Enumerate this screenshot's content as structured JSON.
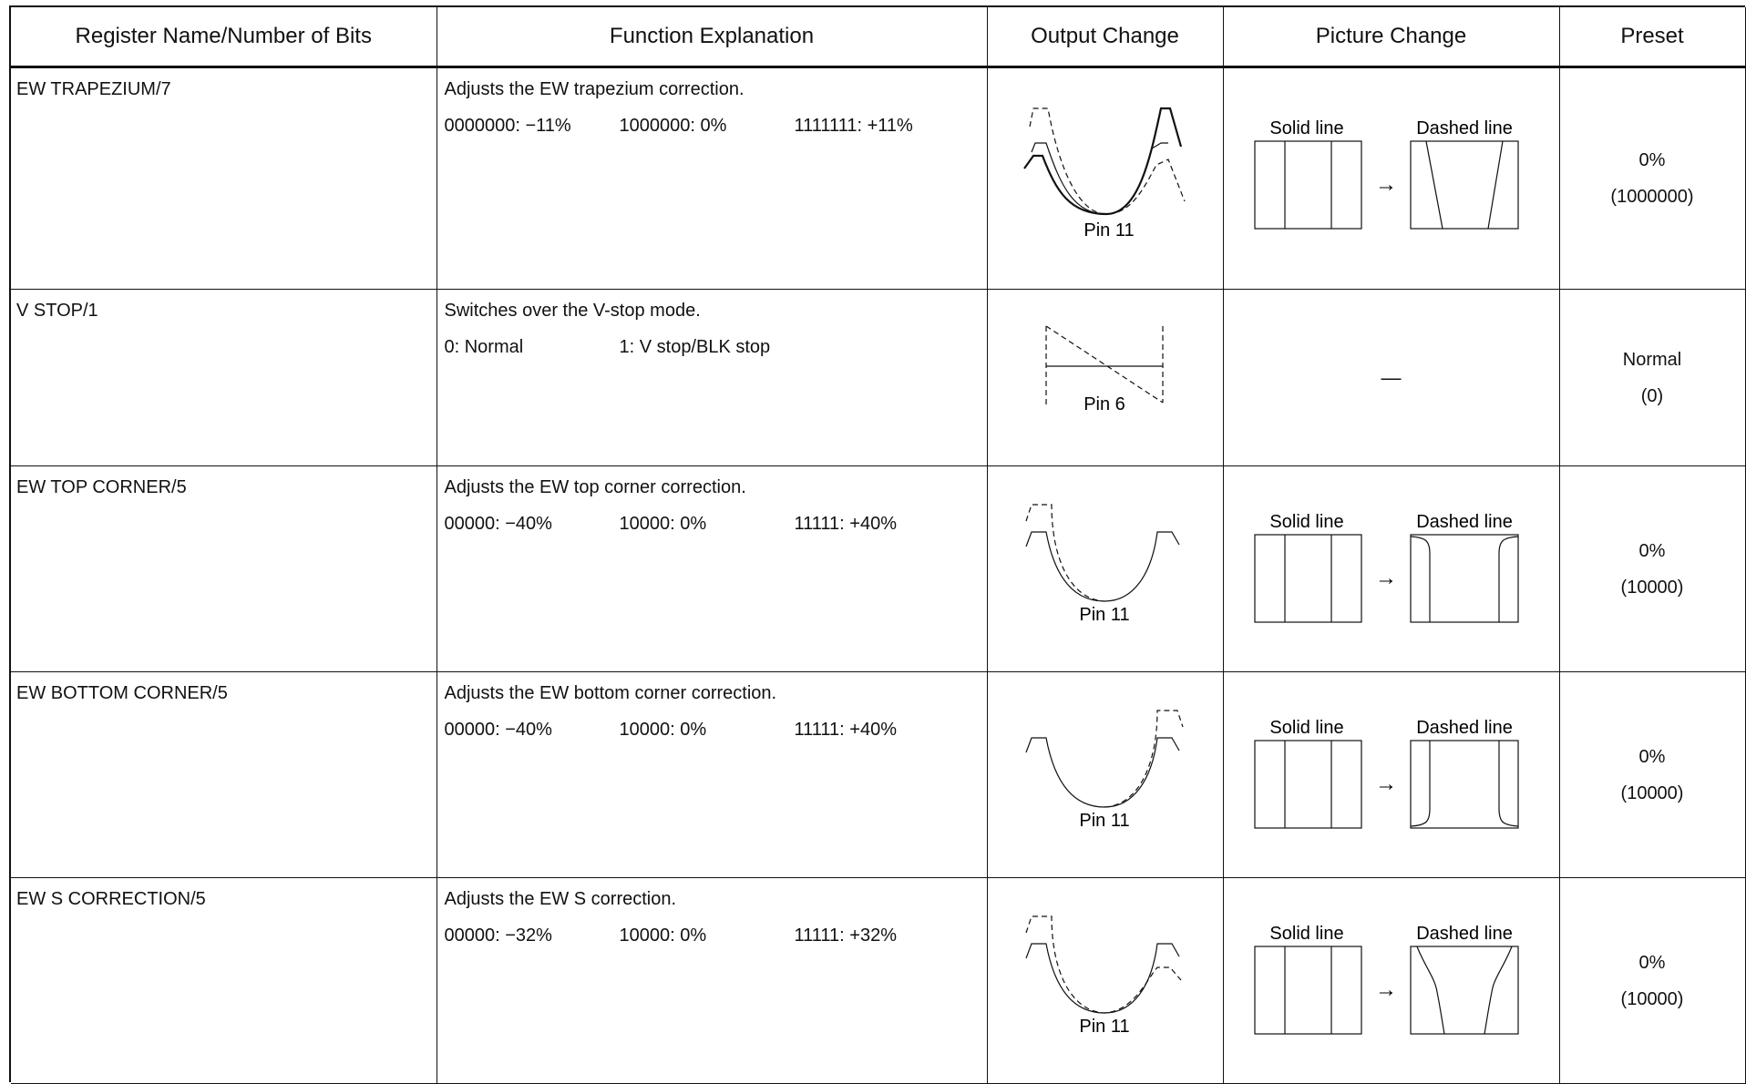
{
  "headers": {
    "register": "Register Name/Number of Bits",
    "function": "Function Explanation",
    "output": "Output Change",
    "picture": "Picture Change",
    "preset": "Preset"
  },
  "rows": [
    {
      "name": "EW TRAPEZIUM/7",
      "description": "Adjusts the EW trapezium correction.",
      "values": [
        "0000000: −11%",
        "1000000: 0%",
        "1111111: +11%"
      ],
      "pin_label": "Pin 11",
      "picture": {
        "solid_label": "Solid line",
        "dashed_label": "Dashed line",
        "arrow": "→"
      },
      "preset_value": "0%",
      "preset_code": "(1000000)"
    },
    {
      "name": "V STOP/1",
      "description": "Switches over the V-stop mode.",
      "values": [
        "0: Normal",
        "1: V stop/BLK stop"
      ],
      "pin_label": "Pin 6",
      "picture_text": "—",
      "preset_value": "Normal",
      "preset_code": "(0)"
    },
    {
      "name": "EW TOP CORNER/5",
      "description": "Adjusts the EW top corner correction.",
      "values": [
        "00000: −40%",
        "10000: 0%",
        "11111: +40%"
      ],
      "pin_label": "Pin 11",
      "picture": {
        "solid_label": "Solid line",
        "dashed_label": "Dashed line",
        "arrow": "→"
      },
      "preset_value": "0%",
      "preset_code": "(10000)"
    },
    {
      "name": "EW BOTTOM CORNER/5",
      "description": "Adjusts the EW bottom corner correction.",
      "values": [
        "00000: −40%",
        "10000: 0%",
        "11111: +40%"
      ],
      "pin_label": "Pin 11",
      "picture": {
        "solid_label": "Solid line",
        "dashed_label": "Dashed line",
        "arrow": "→"
      },
      "preset_value": "0%",
      "preset_code": "(10000)"
    },
    {
      "name": "EW S CORRECTION/5",
      "description": "Adjusts the EW S correction.",
      "values": [
        "00000: −32%",
        "10000: 0%",
        "11111: +32%"
      ],
      "pin_label": "Pin 11",
      "picture": {
        "solid_label": "Solid line",
        "dashed_label": "Dashed line",
        "arrow": "→"
      },
      "preset_value": "0%",
      "preset_code": "(10000)"
    }
  ]
}
